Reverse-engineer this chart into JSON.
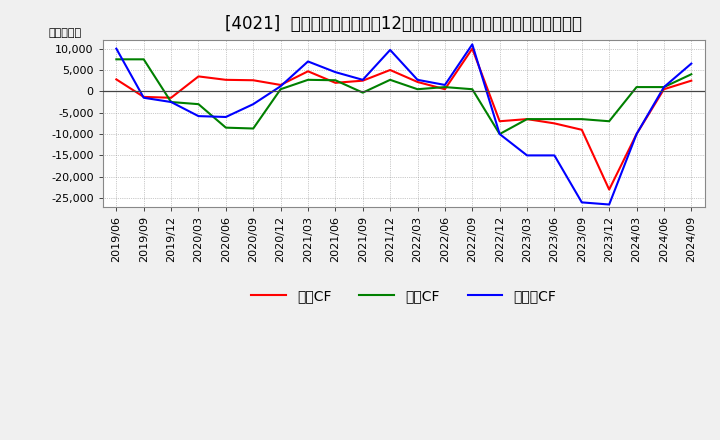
{
  "title": "[4021]  キャッシュフローの12か月移動合計の対前年同期増減額の推移",
  "ylabel": "（百万円）",
  "background_color": "#f0f0f0",
  "plot_background": "#ffffff",
  "grid_color": "#999999",
  "dates": [
    "2019/06",
    "2019/09",
    "2019/12",
    "2020/03",
    "2020/06",
    "2020/09",
    "2020/12",
    "2021/03",
    "2021/06",
    "2021/09",
    "2021/12",
    "2022/03",
    "2022/06",
    "2022/09",
    "2022/12",
    "2023/03",
    "2023/06",
    "2023/09",
    "2023/12",
    "2024/03",
    "2024/06",
    "2024/09"
  ],
  "operating_cf": [
    2800,
    -1300,
    -1500,
    3500,
    2700,
    2600,
    1500,
    4700,
    2000,
    2500,
    5000,
    2200,
    500,
    10000,
    -7000,
    -6500,
    -7500,
    -9000,
    -23000,
    -10000,
    500,
    2500
  ],
  "investing_cf": [
    7500,
    7500,
    -2500,
    -3000,
    -8500,
    -8700,
    500,
    2700,
    2600,
    -300,
    2700,
    500,
    1000,
    500,
    -10000,
    -6500,
    -6500,
    -6500,
    -7000,
    1000,
    1000,
    4000
  ],
  "free_cf": [
    10000,
    -1500,
    -2500,
    -5800,
    -6000,
    -3000,
    1200,
    7000,
    4500,
    2700,
    9700,
    2700,
    1500,
    11000,
    -10000,
    -15000,
    -15000,
    -26000,
    -26500,
    -10000,
    1000,
    6500
  ],
  "line_colors": {
    "operating": "#ff0000",
    "investing": "#008000",
    "free": "#0000ff"
  },
  "legend_labels": [
    "営業CF",
    "投資CF",
    "フリーCF"
  ],
  "ylim": [
    -27000,
    12000
  ],
  "yticks": [
    -25000,
    -20000,
    -15000,
    -10000,
    -5000,
    0,
    5000,
    10000
  ],
  "title_fontsize": 12,
  "axis_fontsize": 8,
  "legend_fontsize": 10
}
